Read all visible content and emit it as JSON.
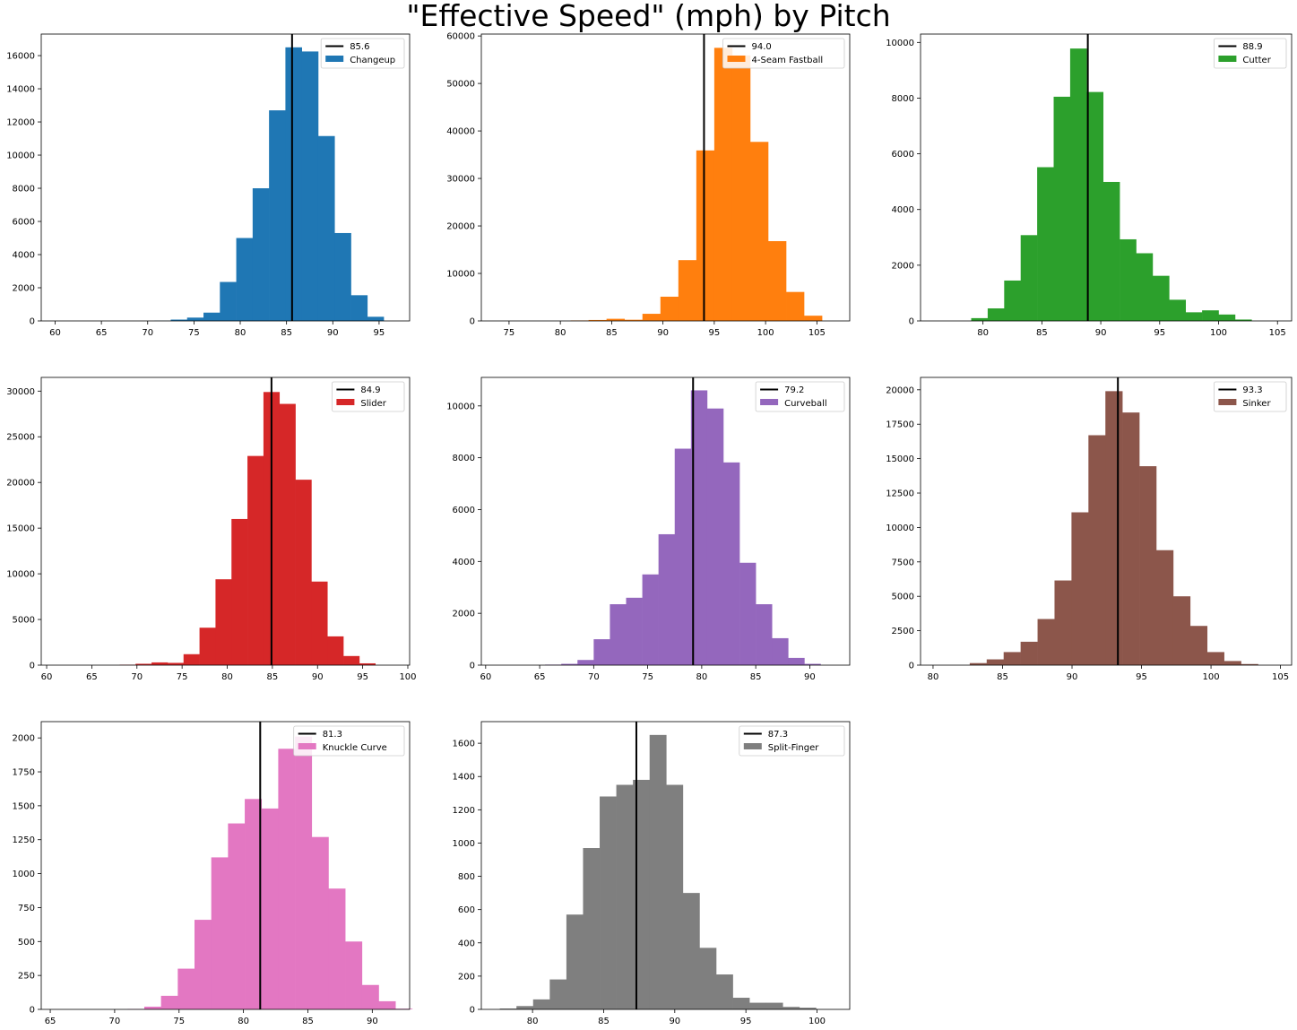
{
  "suptitle": "\"Effective Speed\" (mph) by Pitch",
  "chart_data": [
    {
      "type": "bar",
      "pitch": "Changeup",
      "mean": 85.6,
      "mean_label": "85.6",
      "color": "#1f77b4",
      "bin_start": 60.1,
      "bin_width": 1.77,
      "values": [
        0,
        0,
        0,
        0,
        0,
        0,
        10,
        80,
        200,
        500,
        2350,
        5000,
        8000,
        12700,
        16500,
        16250,
        11150,
        5300,
        1550,
        250
      ],
      "xlim": [
        58.5,
        98.3
      ],
      "xticks": [
        60,
        65,
        70,
        75,
        80,
        85,
        90,
        95
      ],
      "ylim": [
        0,
        17300
      ],
      "yticks": [
        0,
        2000,
        4000,
        6000,
        8000,
        10000,
        12000,
        14000,
        16000
      ]
    },
    {
      "type": "bar",
      "pitch": "4-Seam Fastball",
      "mean": 94.0,
      "mean_label": "94.0",
      "color": "#ff7f0e",
      "bin_start": 74.0,
      "bin_width": 1.75,
      "values": [
        0,
        0,
        0,
        0,
        100,
        200,
        450,
        250,
        1500,
        5100,
        12800,
        35900,
        57500,
        55900,
        37700,
        16800,
        6100,
        1100,
        0,
        0
      ],
      "xlim": [
        72.3,
        108.2
      ],
      "xticks": [
        75,
        80,
        85,
        90,
        95,
        100,
        105
      ],
      "ylim": [
        0,
        60400
      ],
      "yticks": [
        0,
        10000,
        20000,
        30000,
        40000,
        50000,
        60000
      ]
    },
    {
      "type": "bar",
      "pitch": "Cutter",
      "mean": 88.9,
      "mean_label": "88.9",
      "color": "#2ca02c",
      "bin_start": 76.2,
      "bin_width": 1.4,
      "values": [
        0,
        0,
        100,
        450,
        1450,
        3080,
        5520,
        8050,
        9780,
        8220,
        4990,
        2930,
        2430,
        1620,
        760,
        310,
        380,
        230,
        50,
        0
      ],
      "xlim": [
        74.7,
        106.2
      ],
      "xticks": [
        80,
        85,
        90,
        95,
        100,
        105
      ],
      "ylim": [
        0,
        10300
      ],
      "yticks": [
        0,
        2000,
        4000,
        6000,
        8000,
        10000
      ]
    },
    {
      "type": "bar",
      "pitch": "Slider",
      "mean": 84.9,
      "mean_label": "84.9",
      "color": "#d62728",
      "bin_start": 61.0,
      "bin_width": 1.77,
      "values": [
        0,
        0,
        0,
        0,
        50,
        150,
        300,
        250,
        1200,
        4100,
        9400,
        16000,
        22900,
        29900,
        28600,
        20300,
        9150,
        3150,
        1000,
        200
      ],
      "xlim": [
        59.4,
        100.2
      ],
      "xticks": [
        60,
        65,
        70,
        75,
        80,
        85,
        90,
        95,
        100
      ],
      "ylim": [
        0,
        31500
      ],
      "yticks": [
        0,
        5000,
        10000,
        15000,
        20000,
        25000,
        30000
      ]
    },
    {
      "type": "bar",
      "pitch": "Curveball",
      "mean": 79.2,
      "mean_label": "79.2",
      "color": "#9467bd",
      "bin_start": 61.0,
      "bin_width": 1.5,
      "values": [
        0,
        0,
        0,
        20,
        50,
        200,
        1000,
        2350,
        2600,
        3500,
        5050,
        8350,
        10600,
        9900,
        7820,
        3950,
        2350,
        1040,
        280,
        50
      ],
      "xlim": [
        59.6,
        93.7
      ],
      "xticks": [
        60,
        65,
        70,
        75,
        80,
        85,
        90
      ],
      "ylim": [
        0,
        11100
      ],
      "yticks": [
        0,
        2000,
        4000,
        6000,
        8000,
        10000
      ]
    },
    {
      "type": "bar",
      "pitch": "Sinker",
      "mean": 93.3,
      "mean_label": "93.3",
      "color": "#8c564b",
      "bin_start": 80.2,
      "bin_width": 1.22,
      "values": [
        0,
        0,
        150,
        420,
        950,
        1700,
        3350,
        6150,
        11100,
        16700,
        19900,
        18350,
        14450,
        8350,
        5000,
        2850,
        950,
        300,
        80,
        0
      ],
      "xlim": [
        79.1,
        105.8
      ],
      "xticks": [
        80,
        85,
        90,
        95,
        100,
        105
      ],
      "ylim": [
        0,
        20900
      ],
      "yticks": [
        0,
        2500,
        5000,
        7500,
        10000,
        12500,
        15000,
        17500,
        20000
      ]
    },
    {
      "type": "bar",
      "pitch": "Knuckle Curve",
      "mean": 81.3,
      "mean_label": "81.3",
      "color": "#e377c2",
      "bin_start": 65.8,
      "bin_width": 1.3,
      "values": [
        0,
        0,
        0,
        0,
        3,
        20,
        100,
        300,
        660,
        1120,
        1370,
        1550,
        1480,
        1920,
        2010,
        1270,
        890,
        500,
        180,
        60,
        5
      ],
      "xlim": [
        64.3,
        92.9
      ],
      "xticks": [
        65,
        70,
        75,
        80,
        85,
        90
      ],
      "ylim": [
        0,
        2120
      ],
      "yticks": [
        0,
        250,
        500,
        750,
        1000,
        1250,
        1500,
        1750,
        2000
      ]
    },
    {
      "type": "bar",
      "pitch": "Split-Finger",
      "mean": 87.3,
      "mean_label": "87.3",
      "color": "#7f7f7f",
      "bin_start": 77.7,
      "bin_width": 1.17,
      "values": [
        5,
        20,
        60,
        180,
        570,
        970,
        1280,
        1350,
        1380,
        1650,
        1350,
        700,
        370,
        210,
        70,
        40,
        40,
        15,
        10,
        0
      ],
      "xlim": [
        76.4,
        102.3
      ],
      "xticks": [
        80,
        85,
        90,
        95,
        100
      ],
      "ylim": [
        0,
        1730
      ],
      "yticks": [
        0,
        200,
        400,
        600,
        800,
        1000,
        1200,
        1400,
        1600
      ]
    }
  ]
}
